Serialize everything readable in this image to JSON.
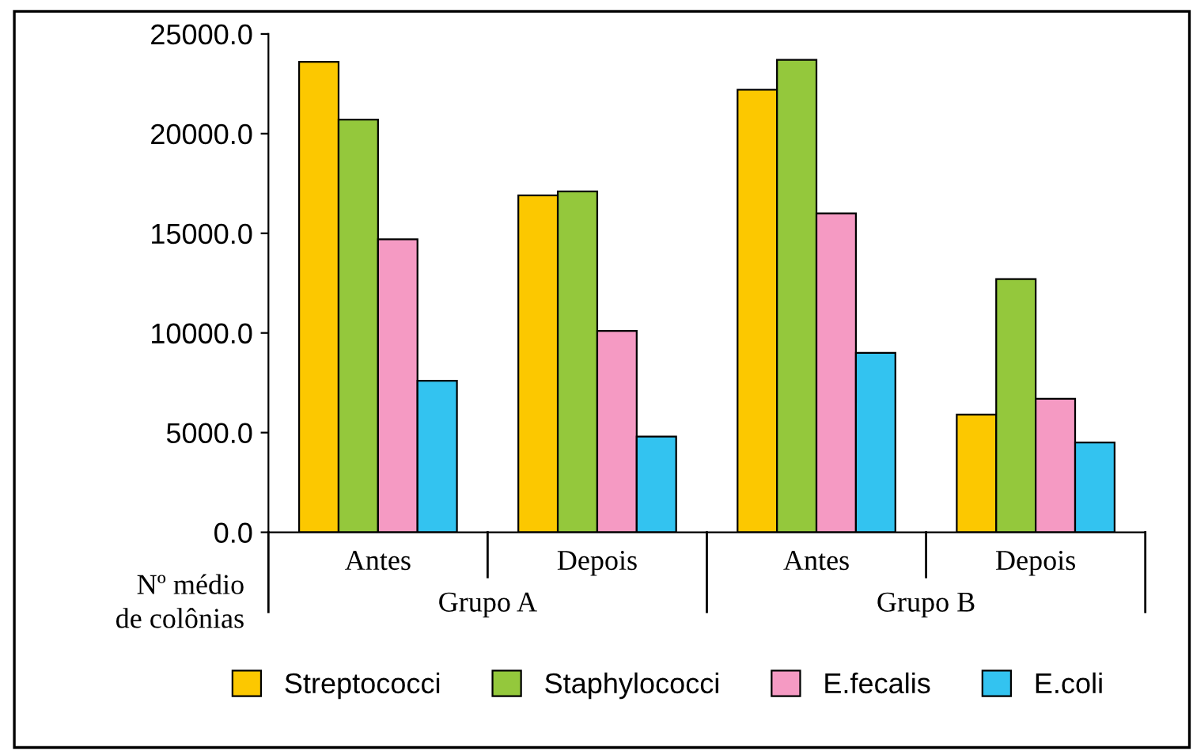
{
  "chart_data": {
    "type": "bar",
    "categories": [
      "Antes",
      "Depois",
      "Antes",
      "Depois"
    ],
    "ylabel": "Nº médio de colônias",
    "annotations": [
      "Grupo A",
      "Grupo B"
    ],
    "series": [
      {
        "name": "Streptococci",
        "color": "#fcc800",
        "values": [
          23600,
          16900,
          22200,
          5900
        ]
      },
      {
        "name": "Staphylococci",
        "color": "#94c83c",
        "values": [
          20700,
          17100,
          23700,
          12700
        ]
      },
      {
        "name": "E.fecalis",
        "color": "#f59ac3",
        "values": [
          14700,
          10100,
          16000,
          6700
        ]
      },
      {
        "name": "E.coli",
        "color": "#33c3f0",
        "values": [
          7600,
          4800,
          9000,
          4500
        ]
      }
    ],
    "ylim": [
      0,
      25000
    ],
    "yticks": [
      {
        "value": 0,
        "label": "0.0"
      },
      {
        "value": 5000,
        "label": "5000.0"
      },
      {
        "value": 10000,
        "label": "10000.0"
      },
      {
        "value": 15000,
        "label": "15000.0"
      },
      {
        "value": 20000,
        "label": "20000.0"
      },
      {
        "value": 25000,
        "label": "25000.0"
      }
    ],
    "grid": false,
    "legend": "bottom"
  }
}
